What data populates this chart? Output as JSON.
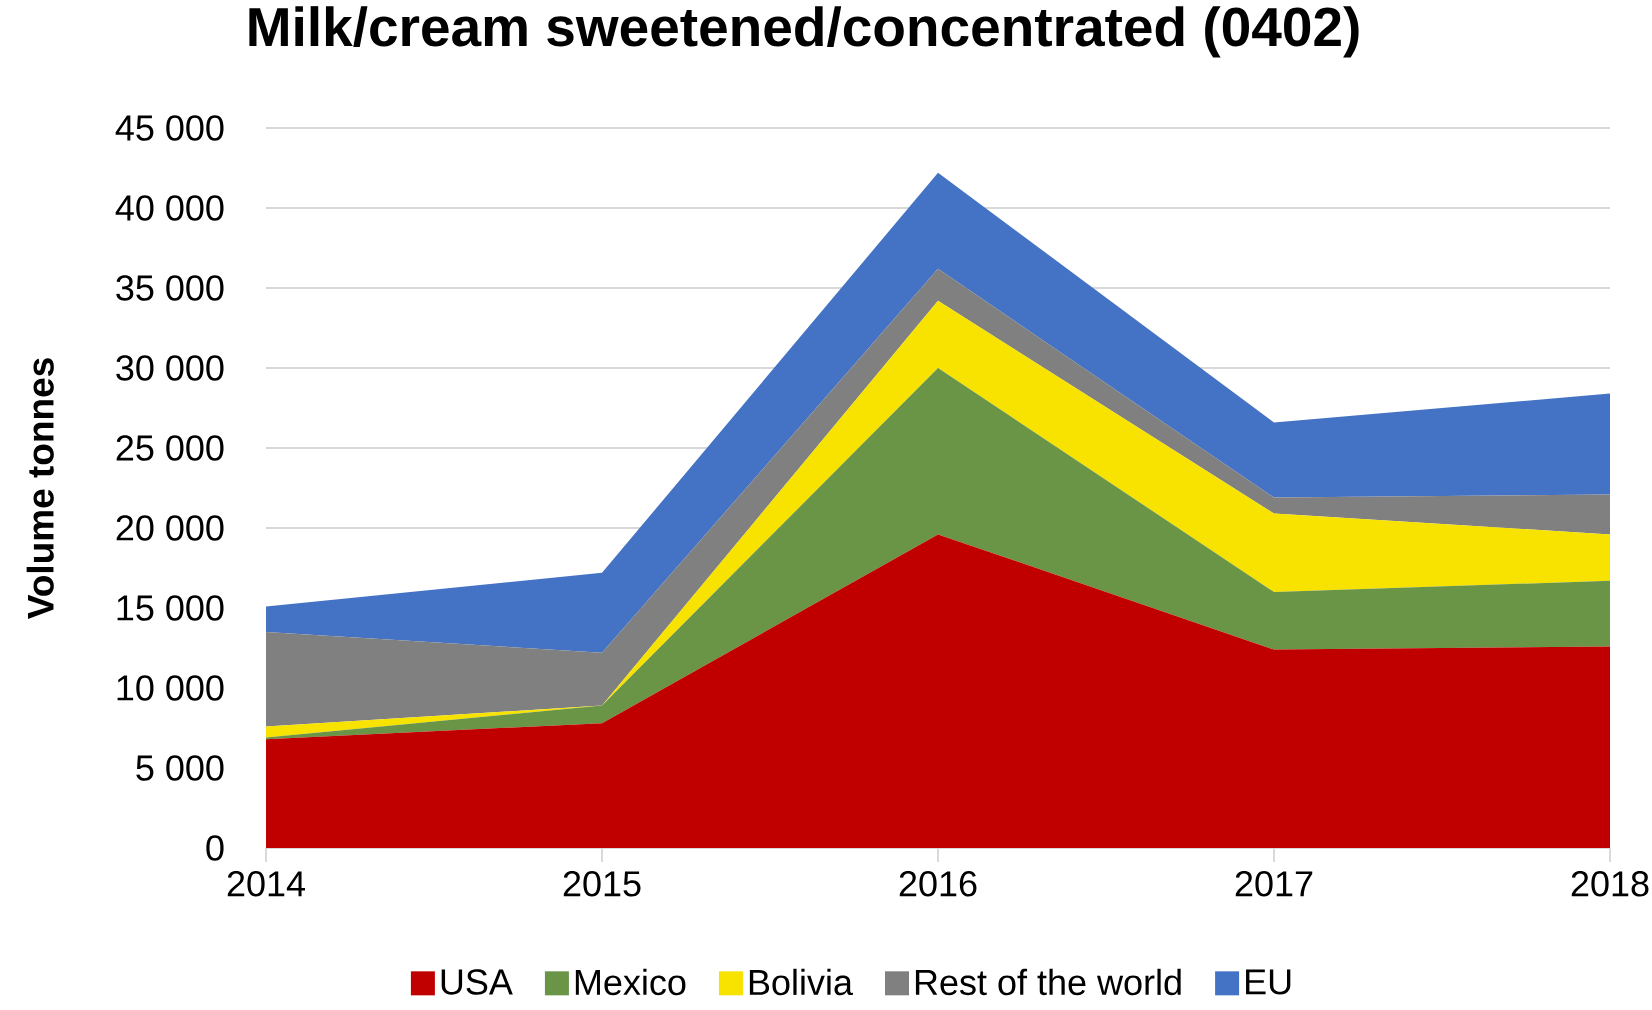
{
  "chart_data": {
    "type": "area",
    "title": "Milk/cream sweetened/concentrated (0402)",
    "ylabel": "Volume tonnes",
    "x": [
      2014,
      2015,
      2016,
      2017,
      2018
    ],
    "xlim": [
      2014,
      2018
    ],
    "xticks": [
      2014,
      2015,
      2016,
      2017,
      2018
    ],
    "ylim": [
      0,
      45000
    ],
    "yticks": [
      0,
      {
        "value": 5000,
        "label": "5 000"
      },
      {
        "value": 10000,
        "label": "10 000"
      },
      {
        "value": 15000,
        "label": "15 000"
      },
      {
        "value": 20000,
        "label": "20 000"
      },
      {
        "value": 25000,
        "label": "25 000"
      },
      {
        "value": 30000,
        "label": "30 000"
      },
      {
        "value": 35000,
        "label": "35 000"
      },
      {
        "value": 40000,
        "label": "40 000"
      },
      {
        "value": 45000,
        "label": "45 000"
      }
    ],
    "stacked": true,
    "grid": "y",
    "legend": "bottom",
    "series": [
      {
        "name": "USA",
        "color": "#c00000",
        "values": [
          6800,
          7800,
          19600,
          12400,
          12600
        ]
      },
      {
        "name": "Mexico",
        "color": "#6a9446",
        "values": [
          100,
          1100,
          10400,
          3600,
          4100
        ]
      },
      {
        "name": "Bolivia",
        "color": "#f7e200",
        "values": [
          700,
          0,
          4200,
          4900,
          2900
        ]
      },
      {
        "name": "Rest of the world",
        "color": "#808080",
        "values": [
          5900,
          3300,
          2000,
          1000,
          2500
        ]
      },
      {
        "name": "EU",
        "color": "#4472c4",
        "values": [
          1600,
          5000,
          6000,
          4700,
          6300
        ]
      }
    ]
  }
}
